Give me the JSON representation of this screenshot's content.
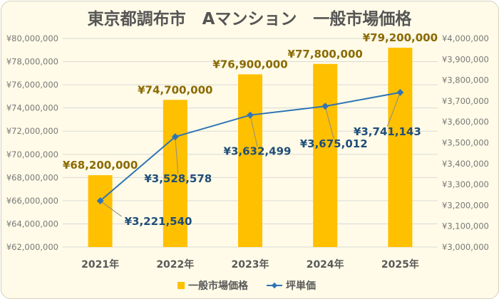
{
  "chart_data": {
    "type": "bar+line",
    "title": "東京都調布市　Aマンション　一般市場価格",
    "categories": [
      "2021年",
      "2022年",
      "2023年",
      "2024年",
      "2025年"
    ],
    "series": [
      {
        "name": "一般市場価格",
        "type": "bar",
        "axis": "left",
        "color": "#ffc000",
        "values": [
          68200000,
          74700000,
          76900000,
          77800000,
          79200000
        ],
        "labels": [
          "¥68,200,000",
          "¥74,700,000",
          "¥76,900,000",
          "¥77,800,000",
          "¥79,200,000"
        ]
      },
      {
        "name": "坪単価",
        "type": "line",
        "axis": "right",
        "color": "#2e75b6",
        "values": [
          3221540,
          3528578,
          3632499,
          3675012,
          3741143
        ],
        "labels": [
          "¥3,221,540",
          "¥3,528,578",
          "¥3,632,499",
          "¥3,675,012",
          "¥3,741,143"
        ]
      }
    ],
    "y_left": {
      "ylim": [
        62000000,
        80000000
      ],
      "ticks": [
        "¥62,000,000",
        "¥64,000,000",
        "¥66,000,000",
        "¥68,000,000",
        "¥70,000,000",
        "¥72,000,000",
        "¥74,000,000",
        "¥76,000,000",
        "¥78,000,000",
        "¥80,000,000"
      ]
    },
    "y_right": {
      "ylim": [
        3000000,
        4000000
      ],
      "ticks": [
        "¥3,000,000",
        "¥3,100,000",
        "¥3,200,000",
        "¥3,300,000",
        "¥3,400,000",
        "¥3,500,000",
        "¥3,600,000",
        "¥3,700,000",
        "¥3,800,000",
        "¥3,900,000",
        "¥4,000,000"
      ]
    },
    "grid": true,
    "legend_position": "bottom"
  }
}
